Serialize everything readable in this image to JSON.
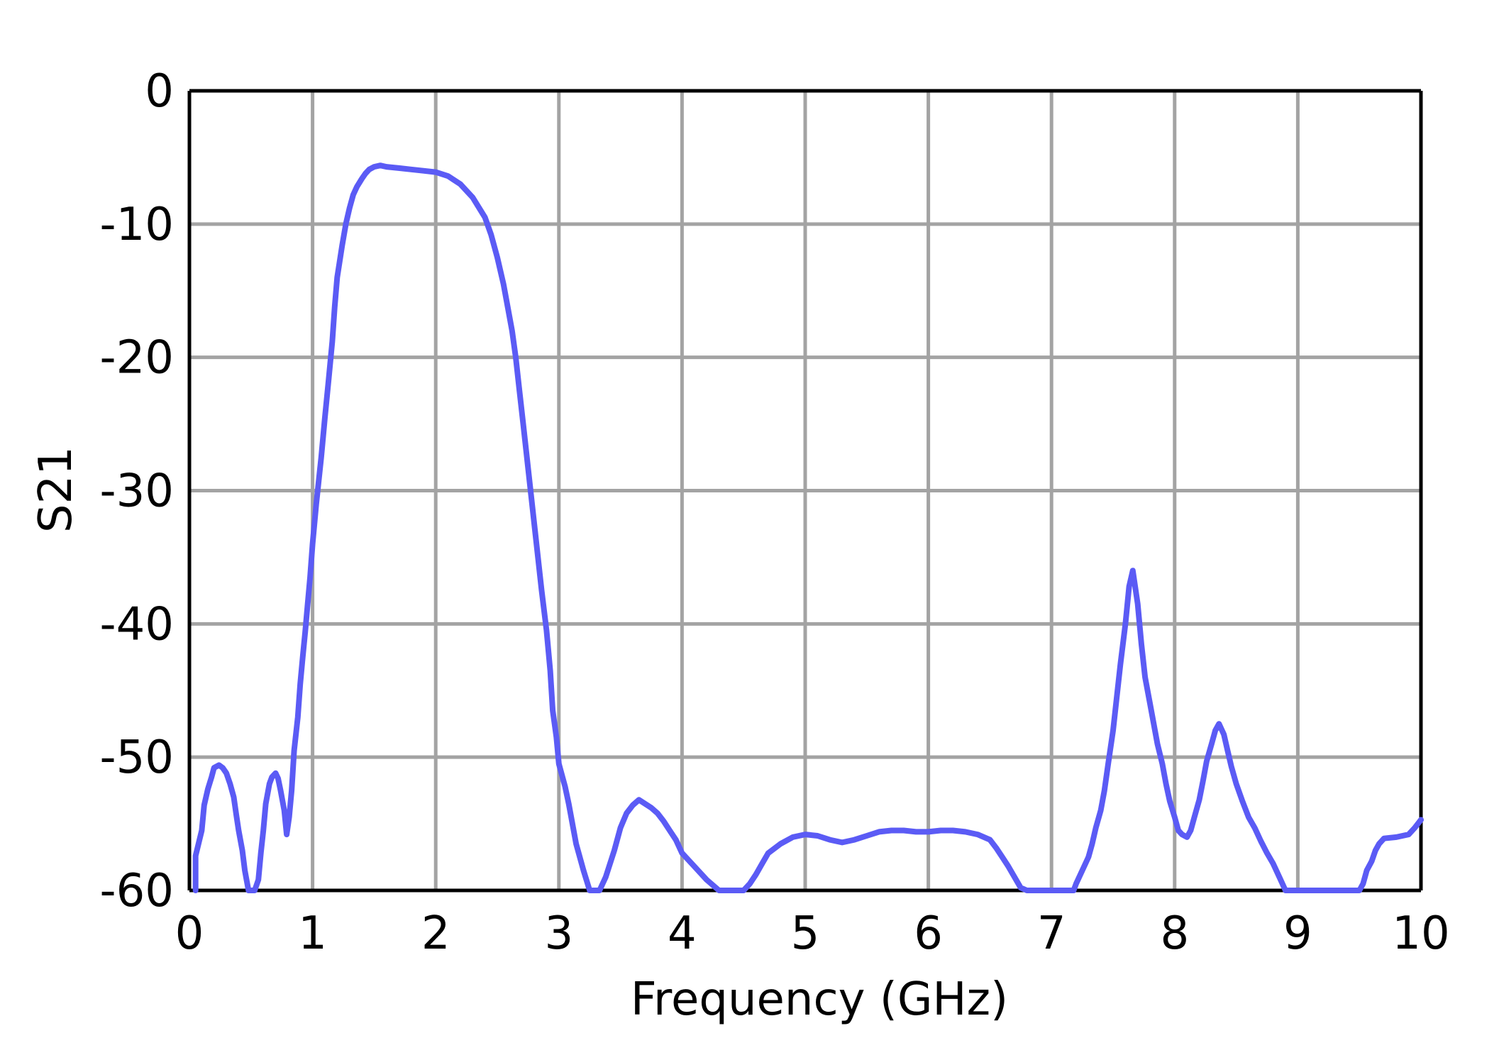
{
  "chart_data": {
    "type": "line",
    "xlabel": "Frequency (GHz)",
    "ylabel": "S21",
    "xlim": [
      0,
      10
    ],
    "ylim": [
      -60,
      0
    ],
    "x_ticks": [
      "0",
      "1",
      "2",
      "3",
      "4",
      "5",
      "6",
      "7",
      "8",
      "9",
      "10"
    ],
    "y_ticks": [
      "0",
      "-10",
      "-20",
      "-30",
      "-40",
      "-50",
      "-60"
    ],
    "grid": true,
    "colors": {
      "series": "#5b5bf5",
      "grid": "#a3a3a3",
      "axis": "#000000"
    },
    "series": [
      {
        "x": [
          0.05,
          0.05,
          0.1,
          0.12,
          0.15,
          0.18,
          0.2,
          0.24,
          0.27,
          0.3,
          0.33,
          0.36,
          0.38,
          0.4,
          0.43,
          0.45,
          0.48,
          0.5,
          0.53,
          0.56,
          0.58,
          0.6,
          0.62,
          0.65,
          0.67,
          0.7,
          0.72,
          0.74,
          0.77,
          0.79,
          0.81,
          0.83,
          0.85,
          0.88,
          0.9,
          0.92,
          0.94,
          0.96,
          0.98,
          1.0,
          1.03,
          1.07,
          1.1,
          1.13,
          1.16,
          1.18,
          1.2,
          1.24,
          1.27,
          1.3,
          1.33,
          1.36,
          1.4,
          1.43,
          1.46,
          1.5,
          1.55,
          1.6,
          1.7,
          1.8,
          1.9,
          2.0,
          2.1,
          2.2,
          2.3,
          2.4,
          2.45,
          2.5,
          2.55,
          2.58,
          2.62,
          2.65,
          2.68,
          2.71,
          2.74,
          2.77,
          2.8,
          2.83,
          2.86,
          2.9,
          2.93,
          2.95,
          2.98,
          3.0,
          3.05,
          3.08,
          3.11,
          3.14,
          3.2,
          3.25,
          3.28,
          3.33,
          3.38,
          3.45,
          3.5,
          3.55,
          3.6,
          3.65,
          3.7,
          3.75,
          3.8,
          3.85,
          3.9,
          3.95,
          4.0,
          4.1,
          4.2,
          4.3,
          4.4,
          4.43,
          4.47,
          4.5,
          4.55,
          4.6,
          4.65,
          4.7,
          4.8,
          4.9,
          5.0,
          5.1,
          5.2,
          5.3,
          5.4,
          5.5,
          5.6,
          5.7,
          5.8,
          5.9,
          6.0,
          6.1,
          6.2,
          6.3,
          6.4,
          6.5,
          6.55,
          6.6,
          6.65,
          6.7,
          6.75,
          6.8,
          6.9,
          7.0,
          7.1,
          7.18,
          7.2,
          7.25,
          7.3,
          7.33,
          7.36,
          7.4,
          7.43,
          7.46,
          7.5,
          7.53,
          7.56,
          7.6,
          7.63,
          7.66,
          7.7,
          7.73,
          7.76,
          7.8,
          7.83,
          7.86,
          7.9,
          7.93,
          7.96,
          8.0,
          8.03,
          8.06,
          8.1,
          8.13,
          8.16,
          8.2,
          8.23,
          8.26,
          8.3,
          8.33,
          8.36,
          8.4,
          8.43,
          8.46,
          8.5,
          8.55,
          8.6,
          8.65,
          8.7,
          8.75,
          8.8,
          8.85,
          8.9,
          9.0,
          9.1,
          9.2,
          9.3,
          9.4,
          9.5,
          9.53,
          9.56,
          9.6,
          9.63,
          9.66,
          9.7,
          9.8,
          9.9,
          9.95,
          10.0
        ],
        "y": [
          -60.0,
          -57.4,
          -55.5,
          -53.6,
          -52.4,
          -51.5,
          -50.8,
          -50.6,
          -50.8,
          -51.2,
          -52.0,
          -53.0,
          -54.3,
          -55.5,
          -57.0,
          -58.5,
          -60.0,
          -60.0,
          -60.0,
          -59.2,
          -57.2,
          -55.5,
          -53.5,
          -52.0,
          -51.5,
          -51.2,
          -51.6,
          -52.5,
          -54.0,
          -55.8,
          -54.5,
          -52.5,
          -49.5,
          -47.0,
          -44.5,
          -42.5,
          -40.6,
          -38.5,
          -36.5,
          -34.0,
          -31.0,
          -27.5,
          -24.5,
          -21.7,
          -18.8,
          -16.2,
          -14.0,
          -11.6,
          -10.0,
          -8.8,
          -7.8,
          -7.2,
          -6.6,
          -6.2,
          -5.9,
          -5.7,
          -5.6,
          -5.7,
          -5.8,
          -5.9,
          -6.0,
          -6.1,
          -6.4,
          -7.0,
          -8.0,
          -9.5,
          -10.8,
          -12.5,
          -14.5,
          -16.0,
          -18.0,
          -20.0,
          -22.5,
          -25.0,
          -27.5,
          -30.0,
          -32.5,
          -35.0,
          -37.5,
          -40.5,
          -43.5,
          -46.5,
          -48.5,
          -50.5,
          -52.2,
          -53.5,
          -55.0,
          -56.5,
          -58.5,
          -60.0,
          -60.0,
          -60.0,
          -59.0,
          -57.0,
          -55.3,
          -54.2,
          -53.6,
          -53.2,
          -53.5,
          -53.8,
          -54.2,
          -54.8,
          -55.5,
          -56.2,
          -57.2,
          -58.2,
          -59.2,
          -60.0,
          -60.0,
          -60.0,
          -60.0,
          -60.0,
          -59.5,
          -58.8,
          -58.0,
          -57.2,
          -56.5,
          -56.0,
          -55.8,
          -55.9,
          -56.2,
          -56.4,
          -56.2,
          -55.9,
          -55.6,
          -55.5,
          -55.5,
          -55.6,
          -55.6,
          -55.5,
          -55.5,
          -55.6,
          -55.8,
          -56.2,
          -56.8,
          -57.5,
          -58.2,
          -59.0,
          -59.8,
          -60.0,
          -60.0,
          -60.0,
          -60.0,
          -60.0,
          -59.5,
          -58.5,
          -57.5,
          -56.5,
          -55.3,
          -54.0,
          -52.5,
          -50.5,
          -48.0,
          -45.5,
          -43.0,
          -40.0,
          -37.2,
          -36.0,
          -38.5,
          -41.5,
          -44.0,
          -46.0,
          -47.5,
          -49.0,
          -50.5,
          -52.0,
          -53.3,
          -54.5,
          -55.5,
          -55.8,
          -56.0,
          -55.5,
          -54.5,
          -53.2,
          -51.8,
          -50.3,
          -49.0,
          -48.0,
          -47.5,
          -48.3,
          -49.5,
          -50.7,
          -52.0,
          -53.3,
          -54.5,
          -55.3,
          -56.3,
          -57.2,
          -58.0,
          -59.0,
          -60.0,
          -60.0,
          -60.0,
          -60.0,
          -60.0,
          -60.0,
          -60.0,
          -59.5,
          -58.5,
          -57.8,
          -57.0,
          -56.5,
          -56.1,
          -56.0,
          -55.8,
          -55.3,
          -54.7
        ]
      }
    ]
  }
}
